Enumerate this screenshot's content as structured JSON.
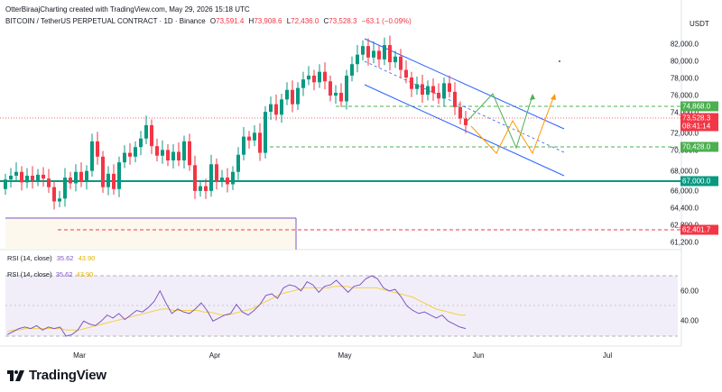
{
  "watermark": "OtterBiraajCharting created with TradingView.com, May 29, 2026 15:18 UTC",
  "currency": "USDT",
  "symbol_title": "BITCOIN / TetherUS PERPETUAL CONTRACT · 1D · Binance",
  "ohlc": {
    "o_label": "O",
    "o": "73,591.4",
    "h_label": "H",
    "h": "73,908.6",
    "l_label": "L",
    "l": "72,436.0",
    "c_label": "C",
    "c": "73,528.3",
    "chg": "−63.1 (−0.09%)"
  },
  "price_ticks": [
    "82,000.0",
    "80,000.0",
    "78,000.0",
    "76,000.0",
    "74,000.0",
    "72,000.0",
    "70,000.0",
    "68,000.0",
    "66,000.0",
    "64,400.0",
    "62,800.0",
    "61,200.0"
  ],
  "price_badges": {
    "upper_level": {
      "text": "74,868.0",
      "color": "#22ab94"
    },
    "last_price": {
      "text": "73,528.3",
      "color": "#f23645"
    },
    "countdown": {
      "text": "08:41:14",
      "color": "#f23645"
    },
    "mid_level": {
      "text": "70,428.0",
      "color": "#22ab94"
    },
    "support": {
      "text": "67,000.0",
      "color": "#089981"
    },
    "low_level": {
      "text": "62,401.7",
      "color": "#f23645"
    }
  },
  "rsi": {
    "title_main": "RSI (14, close)",
    "value_main": "35.62",
    "ma_main": "43.90",
    "title_pane": "RSI (14, close)",
    "value_pane": "35.62",
    "ma_pane": "43.90",
    "ticks": [
      "60.00",
      "40.00"
    ]
  },
  "x_ticks": [
    "Mar",
    "Apr",
    "May",
    "Jun",
    "Jul"
  ],
  "brand": "TradingView",
  "colors": {
    "up": "#089981",
    "down": "#f23645",
    "channel": "#2962ff",
    "projection_green": "#4caf50",
    "projection_orange": "#ff9800",
    "rsi_line": "#7e57c2",
    "rsi_ma": "#f4d03f",
    "support_line": "#089981"
  },
  "chart_data": {
    "type": "candlestick",
    "timeframe": "1D",
    "candles_approx": [
      {
        "x": 6,
        "o": 66800,
        "c": 67800
      },
      {
        "x": 12,
        "o": 67800,
        "c": 68200
      },
      {
        "x": 18,
        "o": 68200,
        "c": 68600
      },
      {
        "x": 24,
        "o": 68600,
        "c": 67500
      },
      {
        "x": 30,
        "o": 67500,
        "c": 68200
      },
      {
        "x": 36,
        "o": 68200,
        "c": 67700
      },
      {
        "x": 42,
        "o": 67700,
        "c": 68300
      },
      {
        "x": 48,
        "o": 68300,
        "c": 67900
      },
      {
        "x": 54,
        "o": 67900,
        "c": 67000
      },
      {
        "x": 60,
        "o": 67000,
        "c": 65500
      },
      {
        "x": 66,
        "o": 65500,
        "c": 65800
      },
      {
        "x": 72,
        "o": 65800,
        "c": 68000
      },
      {
        "x": 78,
        "o": 68000,
        "c": 67400
      },
      {
        "x": 84,
        "o": 67400,
        "c": 68600
      },
      {
        "x": 90,
        "o": 68600,
        "c": 67600
      },
      {
        "x": 96,
        "o": 67600,
        "c": 68700
      },
      {
        "x": 102,
        "o": 68700,
        "c": 71800
      },
      {
        "x": 108,
        "o": 71800,
        "c": 70200
      },
      {
        "x": 114,
        "o": 70200,
        "c": 67000
      },
      {
        "x": 120,
        "o": 67000,
        "c": 68400
      },
      {
        "x": 126,
        "o": 68400,
        "c": 66800
      },
      {
        "x": 132,
        "o": 66800,
        "c": 69600
      },
      {
        "x": 138,
        "o": 69600,
        "c": 70600
      },
      {
        "x": 144,
        "o": 70600,
        "c": 70200
      },
      {
        "x": 150,
        "o": 70200,
        "c": 71200
      },
      {
        "x": 156,
        "o": 71200,
        "c": 72100
      },
      {
        "x": 162,
        "o": 72100,
        "c": 73500
      },
      {
        "x": 168,
        "o": 73500,
        "c": 71300
      },
      {
        "x": 174,
        "o": 71300,
        "c": 70300
      },
      {
        "x": 180,
        "o": 70300,
        "c": 70900
      },
      {
        "x": 186,
        "o": 70900,
        "c": 69800
      },
      {
        "x": 192,
        "o": 69800,
        "c": 70700
      },
      {
        "x": 198,
        "o": 70700,
        "c": 69800
      },
      {
        "x": 204,
        "o": 69800,
        "c": 71800
      },
      {
        "x": 210,
        "o": 71800,
        "c": 69300
      },
      {
        "x": 216,
        "o": 69300,
        "c": 66600
      },
      {
        "x": 222,
        "o": 66600,
        "c": 67100
      },
      {
        "x": 228,
        "o": 67100,
        "c": 66600
      },
      {
        "x": 234,
        "o": 66600,
        "c": 69400
      },
      {
        "x": 240,
        "o": 69400,
        "c": 67600
      },
      {
        "x": 246,
        "o": 67600,
        "c": 68000
      },
      {
        "x": 252,
        "o": 68000,
        "c": 67300
      },
      {
        "x": 258,
        "o": 67300,
        "c": 68600
      },
      {
        "x": 264,
        "o": 68600,
        "c": 70400
      },
      {
        "x": 270,
        "o": 70400,
        "c": 72300
      },
      {
        "x": 276,
        "o": 72300,
        "c": 71900
      },
      {
        "x": 282,
        "o": 71900,
        "c": 72700
      },
      {
        "x": 288,
        "o": 72700,
        "c": 70600
      },
      {
        "x": 294,
        "o": 70600,
        "c": 74900
      },
      {
        "x": 300,
        "o": 74900,
        "c": 75700
      },
      {
        "x": 306,
        "o": 75700,
        "c": 74600
      },
      {
        "x": 312,
        "o": 74600,
        "c": 76200
      },
      {
        "x": 318,
        "o": 76200,
        "c": 77200
      },
      {
        "x": 324,
        "o": 77200,
        "c": 75700
      },
      {
        "x": 330,
        "o": 75700,
        "c": 77400
      },
      {
        "x": 336,
        "o": 77400,
        "c": 78300
      },
      {
        "x": 342,
        "o": 78300,
        "c": 78700
      },
      {
        "x": 348,
        "o": 78700,
        "c": 78000
      },
      {
        "x": 354,
        "o": 78000,
        "c": 79100
      },
      {
        "x": 360,
        "o": 79100,
        "c": 78100
      },
      {
        "x": 366,
        "o": 78100,
        "c": 76600
      },
      {
        "x": 372,
        "o": 76600,
        "c": 76900
      },
      {
        "x": 378,
        "o": 76900,
        "c": 76000
      },
      {
        "x": 384,
        "o": 76000,
        "c": 78700
      },
      {
        "x": 390,
        "o": 78700,
        "c": 79900
      },
      {
        "x": 396,
        "o": 79900,
        "c": 80900
      },
      {
        "x": 402,
        "o": 80900,
        "c": 81800
      },
      {
        "x": 408,
        "o": 81800,
        "c": 80600
      },
      {
        "x": 414,
        "o": 80600,
        "c": 81300
      },
      {
        "x": 420,
        "o": 81300,
        "c": 80400
      },
      {
        "x": 426,
        "o": 80400,
        "c": 81900
      },
      {
        "x": 432,
        "o": 81900,
        "c": 80100
      },
      {
        "x": 438,
        "o": 80100,
        "c": 80700
      },
      {
        "x": 444,
        "o": 80700,
        "c": 79300
      },
      {
        "x": 450,
        "o": 79300,
        "c": 78500
      },
      {
        "x": 456,
        "o": 78500,
        "c": 77300
      },
      {
        "x": 462,
        "o": 77300,
        "c": 77800
      },
      {
        "x": 468,
        "o": 77800,
        "c": 76700
      },
      {
        "x": 474,
        "o": 76700,
        "c": 77600
      },
      {
        "x": 480,
        "o": 77600,
        "c": 76900
      },
      {
        "x": 486,
        "o": 76900,
        "c": 76300
      },
      {
        "x": 492,
        "o": 76300,
        "c": 77900
      },
      {
        "x": 498,
        "o": 77900,
        "c": 77000
      },
      {
        "x": 504,
        "o": 77000,
        "c": 75400
      },
      {
        "x": 510,
        "o": 75400,
        "c": 74200
      },
      {
        "x": 516,
        "o": 74200,
        "c": 73500
      }
    ],
    "levels": [
      {
        "price": 74868.0,
        "style": "dashed",
        "color": "green"
      },
      {
        "price": 70428.0,
        "style": "dashed",
        "color": "green"
      },
      {
        "price": 67000.0,
        "style": "solid",
        "color": "teal"
      },
      {
        "price": 62401.7,
        "style": "dashed",
        "color": "red"
      }
    ],
    "rsi_series": [
      31,
      33,
      35,
      36,
      35,
      37,
      34,
      36,
      35,
      36,
      30,
      31,
      34,
      40,
      38,
      37,
      40,
      44,
      42,
      45,
      41,
      44,
      47,
      46,
      49,
      53,
      60,
      52,
      45,
      48,
      46,
      45,
      48,
      52,
      47,
      40,
      42,
      44,
      45,
      51,
      46,
      44,
      47,
      51,
      57,
      58,
      55,
      62,
      64,
      63,
      60,
      66,
      64,
      59,
      63,
      64,
      67,
      63,
      59,
      63,
      64,
      68,
      70,
      68,
      62,
      60,
      61,
      56,
      50,
      47,
      45,
      46,
      44,
      42,
      44,
      40,
      38,
      36,
      35
    ],
    "rsi_ma_series": [
      33,
      34,
      34,
      35,
      35,
      35,
      35,
      35,
      35,
      35,
      34,
      34,
      34,
      35,
      36,
      37,
      38,
      39,
      40,
      41,
      42,
      43,
      44,
      45,
      46,
      47,
      48,
      48,
      47,
      47,
      47,
      47,
      47,
      46,
      46,
      45,
      44,
      44,
      45,
      46,
      47,
      48,
      50,
      52,
      54,
      56,
      58,
      59,
      60,
      61,
      62,
      62,
      62,
      62,
      62,
      63,
      63,
      63,
      62,
      62,
      62,
      62,
      62,
      61,
      60,
      59,
      58,
      57,
      56,
      54,
      52,
      50,
      48,
      47,
      46,
      45,
      44,
      44
    ],
    "rsi_range": [
      30,
      70
    ],
    "price_range": [
      61200,
      82000
    ]
  }
}
